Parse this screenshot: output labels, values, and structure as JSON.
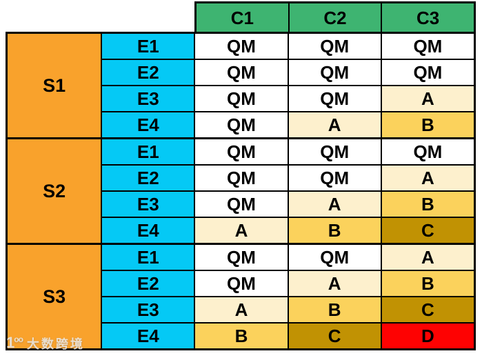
{
  "chart_data": {
    "type": "table",
    "col_headers": [
      "C1",
      "C2",
      "C3"
    ],
    "sub_row_labels": [
      "E1",
      "E2",
      "E3",
      "E4"
    ],
    "grade_colors": {
      "QM": "#FFFFFF",
      "A": "#FDF0CD",
      "B": "#FBD25C",
      "C": "#C19203",
      "D": "#FE0202"
    },
    "header_color": "#3EB471",
    "group_label_color": "#F9A22C",
    "sub_row_label_color": "#05C9F5",
    "border_color": "#000000",
    "groups": [
      {
        "label": "S1",
        "rows": [
          {
            "label": "E1",
            "cells": [
              "QM",
              "QM",
              "QM"
            ]
          },
          {
            "label": "E2",
            "cells": [
              "QM",
              "QM",
              "QM"
            ]
          },
          {
            "label": "E3",
            "cells": [
              "QM",
              "QM",
              "A"
            ]
          },
          {
            "label": "E4",
            "cells": [
              "QM",
              "A",
              "B"
            ]
          }
        ]
      },
      {
        "label": "S2",
        "rows": [
          {
            "label": "E1",
            "cells": [
              "QM",
              "QM",
              "QM"
            ]
          },
          {
            "label": "E2",
            "cells": [
              "QM",
              "QM",
              "A"
            ]
          },
          {
            "label": "E3",
            "cells": [
              "QM",
              "A",
              "B"
            ]
          },
          {
            "label": "E4",
            "cells": [
              "A",
              "B",
              "C"
            ]
          }
        ]
      },
      {
        "label": "S3",
        "rows": [
          {
            "label": "E1",
            "cells": [
              "QM",
              "QM",
              "A"
            ]
          },
          {
            "label": "E2",
            "cells": [
              "QM",
              "A",
              "B"
            ]
          },
          {
            "label": "E3",
            "cells": [
              "A",
              "B",
              "C"
            ]
          },
          {
            "label": "E4",
            "cells": [
              "B",
              "C",
              "D"
            ]
          }
        ]
      }
    ]
  },
  "watermark": {
    "logo_stem": "1",
    "logo_rings": "oo",
    "brand": "大数跨境"
  }
}
